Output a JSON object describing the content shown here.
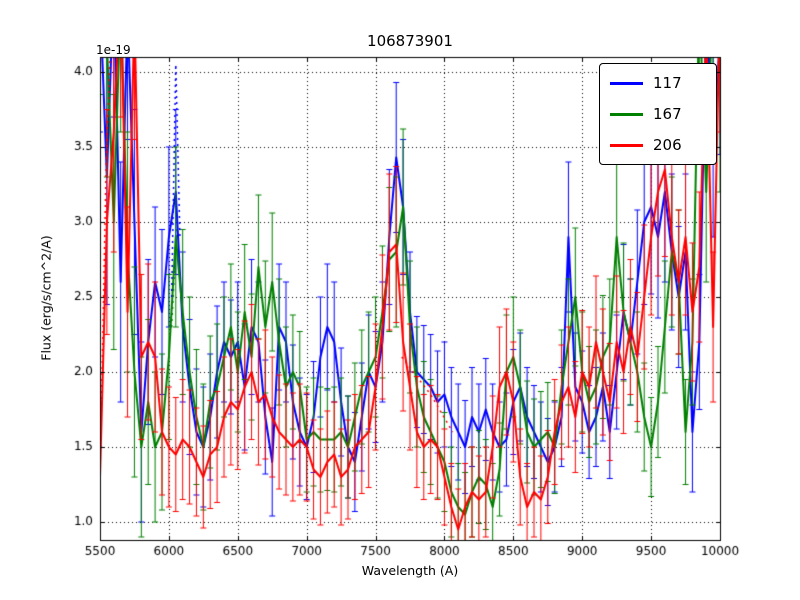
{
  "figure": {
    "background": "#ffffff"
  },
  "chart_data": {
    "type": "line",
    "title": "106873901",
    "xlabel": "Wavelength (A)",
    "ylabel": "Flux (erg/s/cm^2/A)",
    "offset_label": "1e-19",
    "grid": true,
    "legend_position": "upper right",
    "xlim": [
      5500,
      10000
    ],
    "ylim": [
      0.88,
      4.1
    ],
    "xticks": [
      5500,
      6000,
      6500,
      7000,
      7500,
      8000,
      8500,
      9000,
      9500,
      10000
    ],
    "xtick_labels": [
      "5500",
      "6000",
      "6500",
      "7000",
      "7500",
      "8000",
      "8500",
      "9000",
      "9500",
      "10000"
    ],
    "yticks": [
      1.0,
      1.5,
      2.0,
      2.5,
      3.0,
      3.5,
      4.0
    ],
    "ytick_labels": [
      "1.0",
      "1.5",
      "2.0",
      "2.5",
      "3.0",
      "3.5",
      "4.0"
    ],
    "x": [
      5500,
      5550,
      5600,
      5650,
      5700,
      5750,
      5800,
      5850,
      5900,
      5950,
      6000,
      6050,
      6100,
      6150,
      6200,
      6250,
      6300,
      6350,
      6400,
      6450,
      6500,
      6550,
      6600,
      6650,
      6700,
      6750,
      6800,
      6850,
      6900,
      6950,
      7000,
      7050,
      7100,
      7150,
      7200,
      7250,
      7300,
      7350,
      7400,
      7450,
      7500,
      7550,
      7600,
      7650,
      7700,
      7750,
      7800,
      7850,
      7900,
      7950,
      8000,
      8050,
      8100,
      8150,
      8200,
      8250,
      8300,
      8350,
      8400,
      8450,
      8500,
      8550,
      8600,
      8650,
      8700,
      8750,
      8800,
      8850,
      8900,
      8950,
      9000,
      9050,
      9100,
      9150,
      9200,
      9250,
      9300,
      9350,
      9400,
      9450,
      9500,
      9550,
      9600,
      9650,
      9700,
      9750,
      9800,
      9850,
      9900,
      9950,
      10000
    ],
    "series": [
      {
        "name": "117",
        "color": "#0000ff",
        "values": [
          4.5,
          3.3,
          4.6,
          2.6,
          4.4,
          3.0,
          1.6,
          2.2,
          2.6,
          2.4,
          2.9,
          3.2,
          2.3,
          1.9,
          1.6,
          1.5,
          1.7,
          2.0,
          2.2,
          2.1,
          2.2,
          1.9,
          2.3,
          2.2,
          1.7,
          1.4,
          2.3,
          2.2,
          1.8,
          1.6,
          1.5,
          1.7,
          2.1,
          2.3,
          2.2,
          1.8,
          1.5,
          1.4,
          1.7,
          2.0,
          1.9,
          2.2,
          2.9,
          3.43,
          3.1,
          2.4,
          2.0,
          1.95,
          1.9,
          1.8,
          1.85,
          1.7,
          1.6,
          1.5,
          1.7,
          1.6,
          1.75,
          1.6,
          1.5,
          1.55,
          1.8,
          1.9,
          1.7,
          1.6,
          1.5,
          1.4,
          1.5,
          1.7,
          2.9,
          1.9,
          1.8,
          1.6,
          1.7,
          1.9,
          1.6,
          2.0,
          2.4,
          2.2,
          2.6,
          3.0,
          3.1,
          2.9,
          3.2,
          2.8,
          2.5,
          2.8,
          1.6,
          2.2,
          4.4,
          3.6,
          4.2
        ],
        "errors": [
          0.9,
          0.85,
          0.9,
          0.8,
          0.85,
          0.75,
          0.6,
          0.55,
          0.5,
          0.55,
          0.6,
          0.55,
          0.5,
          0.45,
          0.42,
          0.4,
          0.42,
          0.44,
          0.4,
          0.38,
          0.4,
          0.42,
          0.45,
          0.4,
          0.38,
          0.36,
          0.42,
          0.4,
          0.38,
          0.36,
          0.35,
          0.37,
          0.4,
          0.42,
          0.4,
          0.36,
          0.34,
          0.33,
          0.36,
          0.38,
          0.37,
          0.4,
          0.45,
          0.5,
          0.45,
          0.4,
          0.37,
          0.36,
          0.35,
          0.34,
          0.35,
          0.33,
          0.32,
          0.31,
          0.33,
          0.32,
          0.34,
          0.32,
          0.3,
          0.31,
          0.35,
          0.36,
          0.33,
          0.31,
          0.3,
          0.29,
          0.3,
          0.33,
          0.5,
          0.36,
          0.34,
          0.31,
          0.33,
          0.36,
          0.31,
          0.38,
          0.45,
          0.42,
          0.48,
          0.55,
          0.58,
          0.54,
          0.6,
          0.52,
          0.47,
          0.52,
          0.4,
          0.45,
          0.8,
          0.7,
          0.75
        ]
      },
      {
        "name": "167",
        "color": "#008000",
        "values": [
          4.8,
          4.2,
          3.0,
          4.5,
          2.8,
          2.0,
          1.5,
          1.8,
          1.5,
          1.6,
          2.1,
          2.9,
          2.4,
          2.0,
          1.7,
          1.5,
          1.8,
          1.9,
          2.1,
          2.3,
          2.0,
          2.4,
          2.1,
          2.7,
          2.3,
          2.6,
          2.2,
          1.9,
          2.0,
          1.9,
          1.55,
          1.6,
          1.55,
          1.55,
          1.55,
          1.6,
          1.5,
          1.7,
          1.9,
          2.0,
          2.1,
          2.4,
          2.75,
          2.8,
          3.1,
          2.3,
          1.9,
          1.7,
          1.6,
          1.5,
          1.4,
          1.2,
          1.1,
          1.05,
          1.2,
          1.3,
          1.25,
          1.1,
          1.35,
          2.0,
          2.1,
          1.9,
          1.6,
          1.5,
          1.55,
          1.6,
          1.5,
          1.9,
          2.2,
          2.5,
          2.0,
          1.8,
          1.9,
          2.1,
          2.2,
          2.9,
          2.4,
          2.2,
          2.0,
          1.7,
          1.5,
          1.8,
          2.3,
          2.8,
          2.6,
          1.6,
          2.2,
          4.5,
          3.2,
          4.6,
          4.0
        ],
        "errors": [
          0.95,
          0.9,
          0.85,
          0.9,
          0.8,
          0.7,
          0.6,
          0.55,
          0.5,
          0.52,
          0.55,
          0.6,
          0.55,
          0.5,
          0.45,
          0.42,
          0.44,
          0.42,
          0.4,
          0.42,
          0.4,
          0.45,
          0.42,
          0.48,
          0.44,
          0.46,
          0.42,
          0.4,
          0.38,
          0.37,
          0.35,
          0.36,
          0.35,
          0.34,
          0.35,
          0.36,
          0.34,
          0.36,
          0.38,
          0.4,
          0.4,
          0.44,
          0.48,
          0.5,
          0.52,
          0.44,
          0.4,
          0.37,
          0.35,
          0.34,
          0.33,
          0.3,
          0.29,
          0.28,
          0.3,
          0.31,
          0.3,
          0.29,
          0.31,
          0.38,
          0.4,
          0.38,
          0.34,
          0.32,
          0.32,
          0.33,
          0.31,
          0.38,
          0.42,
          0.46,
          0.4,
          0.37,
          0.38,
          0.41,
          0.42,
          0.5,
          0.46,
          0.42,
          0.4,
          0.36,
          0.33,
          0.37,
          0.44,
          0.5,
          0.48,
          0.35,
          0.42,
          0.85,
          0.6,
          0.9,
          0.8
        ]
      },
      {
        "name": "206",
        "color": "#ff0000",
        "values": [
          1.3,
          3.0,
          3.6,
          4.6,
          2.4,
          4.4,
          2.1,
          2.2,
          2.1,
          1.6,
          1.5,
          1.45,
          1.55,
          1.5,
          1.4,
          1.3,
          1.45,
          1.5,
          1.7,
          1.8,
          1.75,
          1.9,
          2.0,
          1.8,
          1.85,
          1.7,
          1.6,
          1.55,
          1.5,
          1.55,
          1.5,
          1.35,
          1.3,
          1.4,
          1.45,
          1.3,
          1.35,
          1.5,
          1.55,
          1.6,
          1.9,
          2.3,
          2.8,
          2.85,
          2.2,
          1.9,
          1.6,
          1.5,
          1.55,
          1.5,
          1.3,
          1.1,
          0.95,
          1.1,
          1.2,
          1.15,
          1.2,
          1.5,
          1.9,
          2.0,
          1.8,
          1.3,
          1.1,
          1.2,
          1.15,
          1.3,
          1.6,
          1.8,
          1.9,
          1.7,
          2.0,
          1.9,
          2.2,
          2.0,
          1.8,
          2.2,
          2.0,
          2.3,
          2.1,
          2.5,
          2.9,
          3.2,
          3.35,
          2.9,
          2.6,
          2.9,
          2.4,
          2.7,
          4.3,
          2.3,
          4.5
        ],
        "errors": [
          0.5,
          0.75,
          0.8,
          0.9,
          0.7,
          0.85,
          0.55,
          0.52,
          0.5,
          0.42,
          0.4,
          0.38,
          0.4,
          0.38,
          0.36,
          0.34,
          0.36,
          0.37,
          0.4,
          0.42,
          0.4,
          0.44,
          0.45,
          0.42,
          0.43,
          0.4,
          0.38,
          0.37,
          0.36,
          0.37,
          0.36,
          0.33,
          0.32,
          0.34,
          0.35,
          0.32,
          0.33,
          0.35,
          0.36,
          0.37,
          0.42,
          0.48,
          0.52,
          0.52,
          0.46,
          0.42,
          0.37,
          0.35,
          0.36,
          0.35,
          0.32,
          0.29,
          0.27,
          0.29,
          0.3,
          0.29,
          0.3,
          0.34,
          0.4,
          0.42,
          0.4,
          0.32,
          0.29,
          0.3,
          0.29,
          0.31,
          0.35,
          0.38,
          0.4,
          0.37,
          0.41,
          0.4,
          0.44,
          0.42,
          0.39,
          0.44,
          0.41,
          0.45,
          0.43,
          0.48,
          0.52,
          0.56,
          0.58,
          0.52,
          0.48,
          0.52,
          0.46,
          0.5,
          0.85,
          0.5,
          0.9
        ]
      }
    ],
    "dotted_segments": [
      {
        "series": "117",
        "points": [
          [
            6020,
            2.5
          ],
          [
            6050,
            4.05
          ],
          [
            6080,
            2.9
          ]
        ]
      },
      {
        "series": "167",
        "points": [
          [
            6020,
            2.3
          ],
          [
            6055,
            2.95
          ]
        ]
      },
      {
        "series": "206",
        "points": [
          [
            5505,
            1.5
          ],
          [
            5545,
            3.4
          ],
          [
            5572,
            4.08
          ]
        ]
      },
      {
        "series": "206",
        "points": [
          [
            7690,
            2.1
          ],
          [
            7900,
            1.85
          ],
          [
            8060,
            1.6
          ]
        ]
      }
    ]
  }
}
